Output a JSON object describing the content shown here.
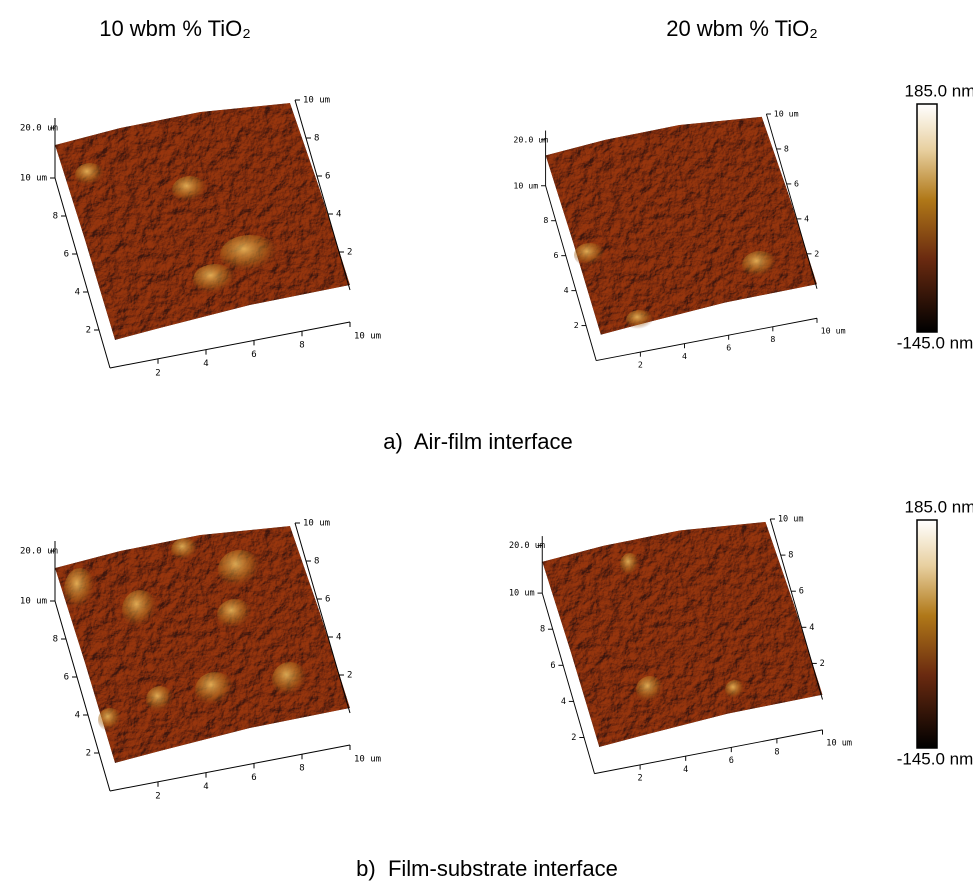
{
  "columns": [
    "10 wbm % TiO₂",
    "20 wbm % TiO₂"
  ],
  "rows": [
    {
      "caption": "a)  Air-film interface",
      "panels": [
        {
          "z_label": "20.0 um",
          "left_axis": [
            "10 um",
            "8",
            "6",
            "4",
            "2"
          ],
          "bottom_axis": [
            "2",
            "4",
            "6",
            "8",
            "10 um"
          ],
          "right_axis": [
            "10 um",
            "8",
            "6",
            "4",
            "2"
          ]
        },
        {
          "z_label": "20.0 um",
          "left_axis": [
            "10 um",
            "8",
            "6",
            "4",
            "2"
          ],
          "bottom_axis": [
            "2",
            "4",
            "6",
            "8",
            "10 um"
          ],
          "right_axis": [
            "10 um",
            "8",
            "6",
            "4",
            "2"
          ]
        }
      ],
      "colorbar": {
        "max": "185.0 nm",
        "min": "-145.0 nm"
      }
    },
    {
      "caption": "b)  Film-substrate interface",
      "panels": [
        {
          "z_label": "20.0 um",
          "left_axis": [
            "10 um",
            "8",
            "6",
            "4",
            "2"
          ],
          "bottom_axis": [
            "2",
            "4",
            "6",
            "8",
            "10 um"
          ],
          "right_axis": [
            "10 um",
            "8",
            "6",
            "4",
            "2"
          ]
        },
        {
          "z_label": "20.0 um",
          "left_axis": [
            "10 um",
            "8",
            "6",
            "4",
            "2"
          ],
          "bottom_axis": [
            "2",
            "4",
            "6",
            "8",
            "10 um"
          ],
          "right_axis": [
            "10 um",
            "8",
            "6",
            "4",
            "2"
          ]
        }
      ],
      "colorbar": {
        "max": "185.0 nm",
        "min": "-145.0 nm"
      }
    }
  ]
}
